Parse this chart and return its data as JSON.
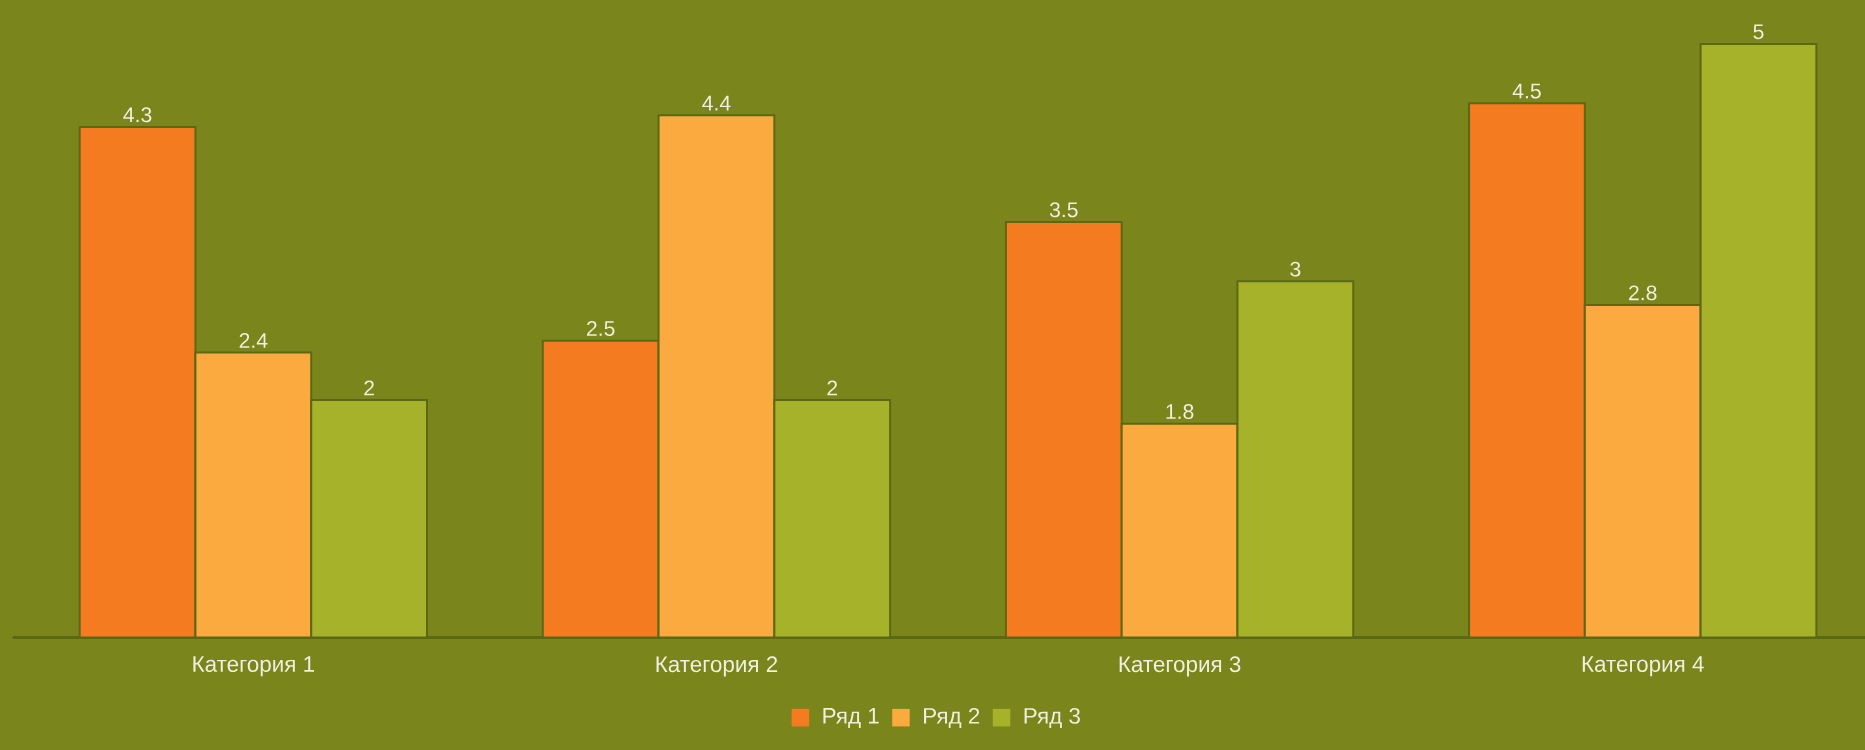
{
  "chart_data": {
    "type": "bar",
    "categories": [
      "Категория 1",
      "Категория 2",
      "Категория 3",
      "Категория 4"
    ],
    "series": [
      {
        "name": "Ряд 1",
        "color": "#f47b20",
        "values": [
          4.3,
          2.5,
          3.5,
          4.5
        ]
      },
      {
        "name": "Ряд 2",
        "color": "#fbaa40",
        "values": [
          2.4,
          4.4,
          1.8,
          2.8
        ]
      },
      {
        "name": "Ряд 3",
        "color": "#a6b22a",
        "values": [
          2,
          2,
          3,
          5
        ]
      }
    ],
    "data_labels": true,
    "legend": "bottom"
  }
}
